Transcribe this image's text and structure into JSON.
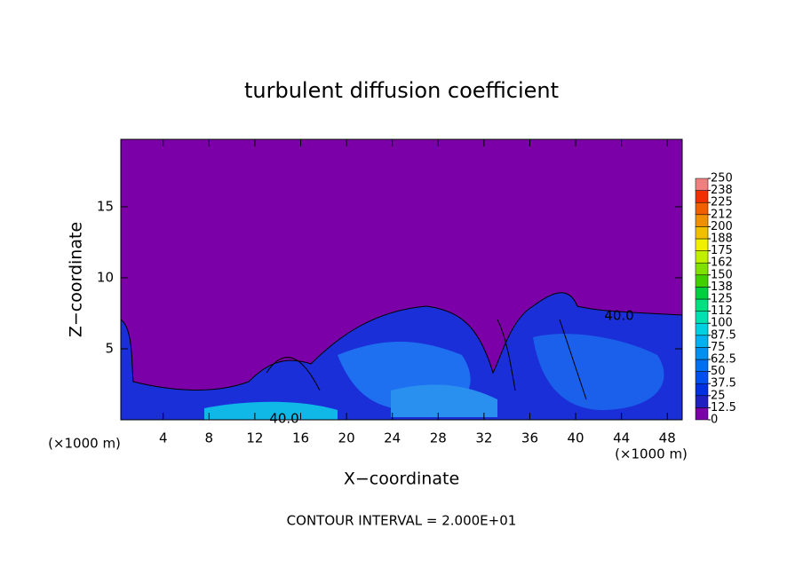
{
  "chart_data": {
    "type": "contour",
    "title": "turbulent diffusion coefficient",
    "x_label": "X−coordinate",
    "y_label": "Z−coordinate",
    "x_unit_labels": [
      "(×1000 m)",
      "(×1000 m)"
    ],
    "footer": "CONTOUR INTERVAL = 2.000E+01",
    "annotations": [
      "40.0",
      "40.0"
    ],
    "xlim": [
      0.3,
      49.3
    ],
    "xticks": [
      4,
      8,
      12,
      16,
      20,
      24,
      28,
      32,
      36,
      40,
      44,
      48
    ],
    "ylim": [
      0,
      19.75
    ],
    "yticks": [
      5,
      10,
      15
    ],
    "colorbar": {
      "ticks": [
        0,
        12.5,
        25,
        37.5,
        50,
        62.5,
        75,
        87.5,
        100,
        {
          "value": 112.5,
          "label": "112"
        },
        125,
        {
          "value": 137.5,
          "label": "138"
        },
        150,
        {
          "value": 162.5,
          "label": "162"
        },
        175,
        {
          "value": 187.5,
          "label": "188"
        },
        200,
        {
          "value": 212.5,
          "label": "212"
        },
        225,
        {
          "value": 237.5,
          "label": "238"
        },
        250
      ],
      "colors": [
        "#7b00a8",
        "#2020c0",
        "#0030e0",
        "#0050f0",
        "#0070f0",
        "#0090f0",
        "#00b0f0",
        "#00d0e0",
        "#00e0b0",
        "#00e080",
        "#00d040",
        "#40d000",
        "#80e000",
        "#c0f000",
        "#f0f000",
        "#f0c000",
        "#f09000",
        "#f06000",
        "#f03000",
        "#f08080"
      ]
    }
  }
}
